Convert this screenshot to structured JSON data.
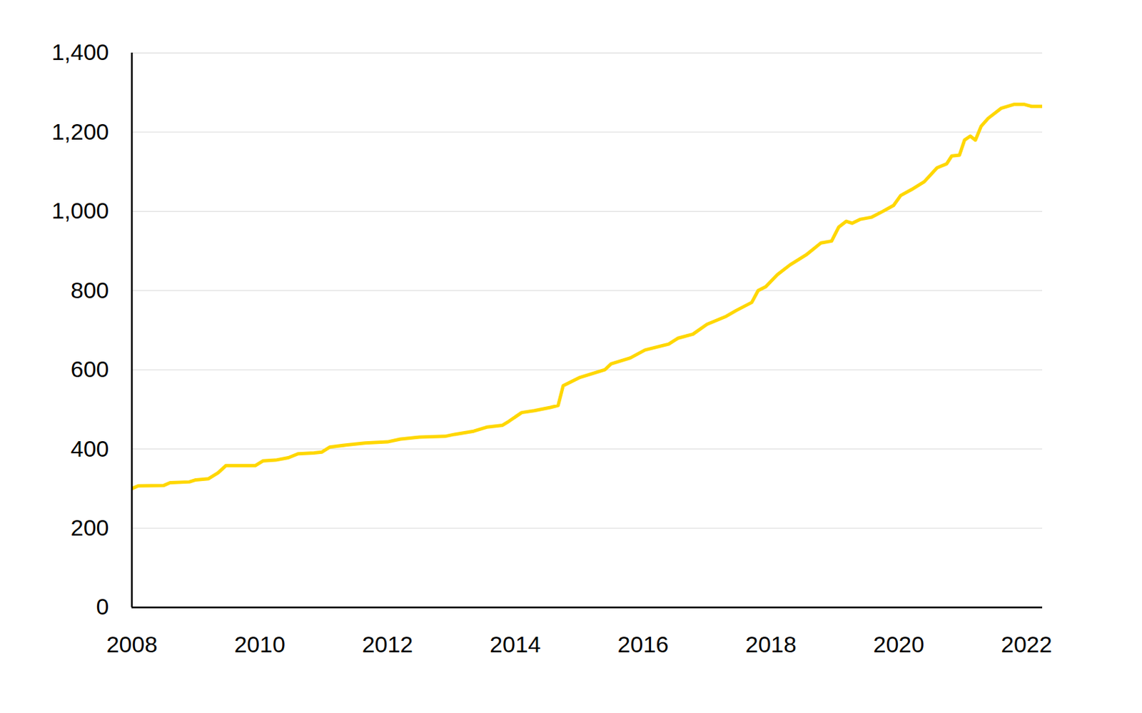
{
  "chart_data": {
    "type": "line",
    "color": "#ffd700",
    "grid": true,
    "x": [
      2008.0,
      2008.1,
      2008.5,
      2008.6,
      2008.9,
      2009.0,
      2009.2,
      2009.35,
      2009.47,
      2009.93,
      2010.05,
      2010.25,
      2010.45,
      2010.6,
      2010.85,
      2010.97,
      2011.1,
      2011.35,
      2011.65,
      2012.0,
      2012.2,
      2012.5,
      2012.9,
      2013.05,
      2013.35,
      2013.55,
      2013.8,
      2013.9,
      2014.1,
      2014.3,
      2014.55,
      2014.67,
      2014.75,
      2015.0,
      2015.4,
      2015.5,
      2015.8,
      2016.03,
      2016.4,
      2016.55,
      2016.78,
      2017.0,
      2017.3,
      2017.46,
      2017.7,
      2017.8,
      2017.92,
      2018.1,
      2018.3,
      2018.55,
      2018.78,
      2018.95,
      2019.06,
      2019.18,
      2019.27,
      2019.4,
      2019.57,
      2019.75,
      2019.92,
      2020.03,
      2020.2,
      2020.4,
      2020.6,
      2020.75,
      2020.83,
      2020.95,
      2021.03,
      2021.12,
      2021.2,
      2021.29,
      2021.4,
      2021.6,
      2021.8,
      2021.97,
      2022.08,
      2022.25
    ],
    "values": [
      300,
      307,
      308,
      315,
      317,
      322,
      325,
      340,
      358,
      358,
      370,
      372,
      378,
      388,
      390,
      392,
      405,
      410,
      415,
      418,
      425,
      430,
      432,
      437,
      445,
      455,
      460,
      470,
      492,
      497,
      505,
      510,
      560,
      580,
      600,
      615,
      630,
      650,
      665,
      680,
      690,
      715,
      735,
      750,
      770,
      800,
      810,
      840,
      865,
      890,
      920,
      925,
      960,
      975,
      970,
      980,
      985,
      1000,
      1015,
      1040,
      1055,
      1075,
      1110,
      1120,
      1140,
      1142,
      1180,
      1190,
      1180,
      1215,
      1235,
      1260,
      1270,
      1270,
      1265,
      1265
    ],
    "xlim": [
      2008,
      2022.25
    ],
    "xticks": [
      2008,
      2010,
      2012,
      2014,
      2016,
      2018,
      2020,
      2022
    ],
    "ylim": [
      0,
      1400
    ],
    "yticks": [
      0,
      200,
      400,
      600,
      800,
      {
        "value": 1000,
        "label": "1,000"
      },
      {
        "value": 1200,
        "label": "1,200"
      },
      {
        "value": 1400,
        "label": "1,400"
      }
    ]
  }
}
